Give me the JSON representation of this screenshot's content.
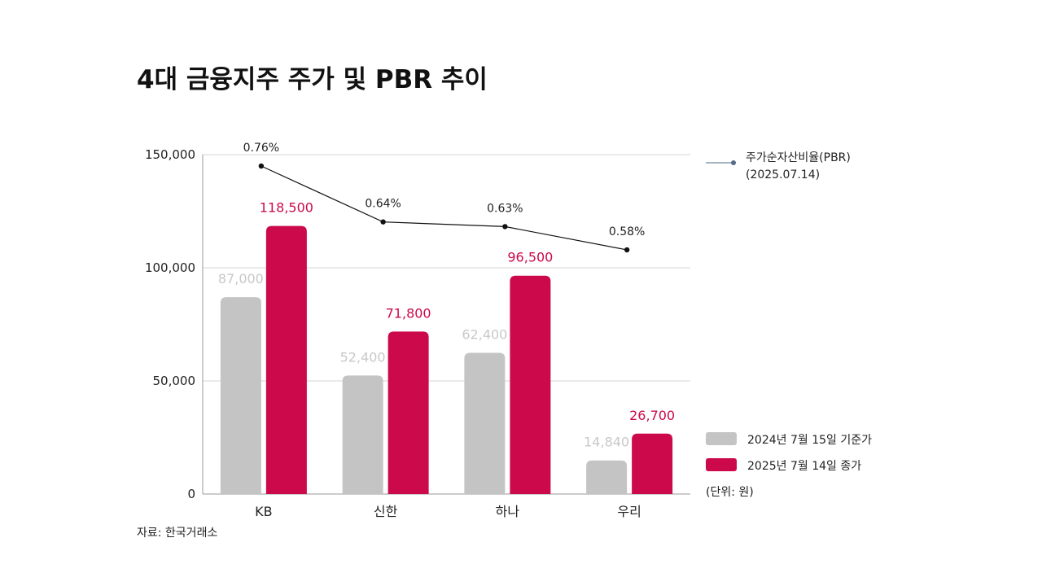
{
  "chart_data": {
    "type": "bar",
    "title": "4대 금융지주 주가 및 PBR 추이",
    "categories": [
      "KB",
      "신한",
      "하나",
      "우리"
    ],
    "ylim": [
      0,
      150000
    ],
    "yticks": [
      0,
      50000,
      100000,
      150000
    ],
    "ytick_labels": [
      "0",
      "50,000",
      "100,000",
      "150,000"
    ],
    "grid": true,
    "series": [
      {
        "name": "2024년 7월 15일 기준가",
        "color": "#c4c4c4",
        "values": [
          87000,
          52400,
          62400,
          14840
        ],
        "labels": [
          "87,000",
          "52,400",
          "62,400",
          "14,840"
        ]
      },
      {
        "name": "2025년 7월 14일 종가",
        "color": "#cc0a4b",
        "values": [
          118500,
          71800,
          96500,
          26700
        ],
        "labels": [
          "118,500",
          "71,800",
          "96,500",
          "26,700"
        ]
      }
    ],
    "line_series": {
      "name": "주가순자산비율(PBR)",
      "name_sub": "(2025.07.14)",
      "color": "#111111",
      "values": [
        0.76,
        0.64,
        0.63,
        0.58
      ],
      "labels": [
        "0.76%",
        "0.64%",
        "0.63%",
        "0.58%"
      ],
      "y_min": 0.58,
      "y_max": 0.76
    },
    "legend_position": "right",
    "unit_note": "(단위: 원)",
    "source": "자료: 한국거래소"
  }
}
